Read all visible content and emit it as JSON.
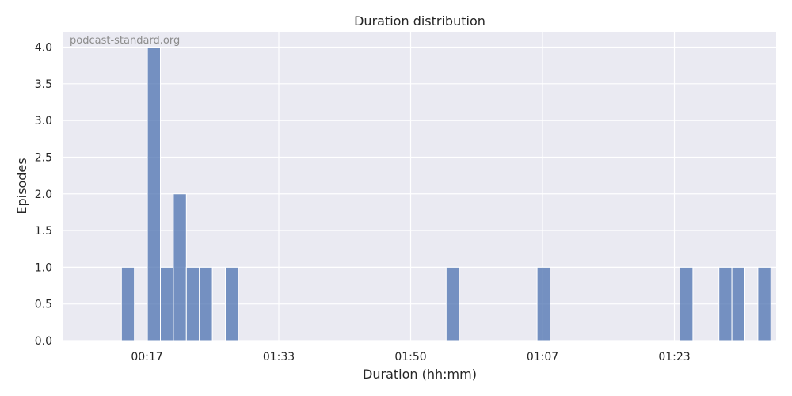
{
  "chart_data": {
    "type": "bar",
    "title": "Duration distribution",
    "xlabel": "Duration (hh:mm)",
    "ylabel": "Episodes",
    "watermark": "podcast-standard.org",
    "x_tick_labels": [
      "00:17",
      "01:33",
      "01:50",
      "01:07",
      "01:23"
    ],
    "y_ticks": [
      "0.0",
      "0.5",
      "1.0",
      "1.5",
      "2.0",
      "2.5",
      "3.0",
      "3.5",
      "4.0"
    ],
    "ylim": [
      0,
      4.2
    ],
    "grid": true,
    "bar_color": "#4c72b0",
    "background_color": "#eaeaf2",
    "bins": [
      {
        "index": 2,
        "count": 1
      },
      {
        "index": 4,
        "count": 4
      },
      {
        "index": 5,
        "count": 1
      },
      {
        "index": 6,
        "count": 2
      },
      {
        "index": 7,
        "count": 1
      },
      {
        "index": 8,
        "count": 1
      },
      {
        "index": 10,
        "count": 1
      },
      {
        "index": 27,
        "count": 1
      },
      {
        "index": 34,
        "count": 1
      },
      {
        "index": 45,
        "count": 1
      },
      {
        "index": 48,
        "count": 1
      },
      {
        "index": 49,
        "count": 1
      },
      {
        "index": 51,
        "count": 1
      }
    ]
  }
}
